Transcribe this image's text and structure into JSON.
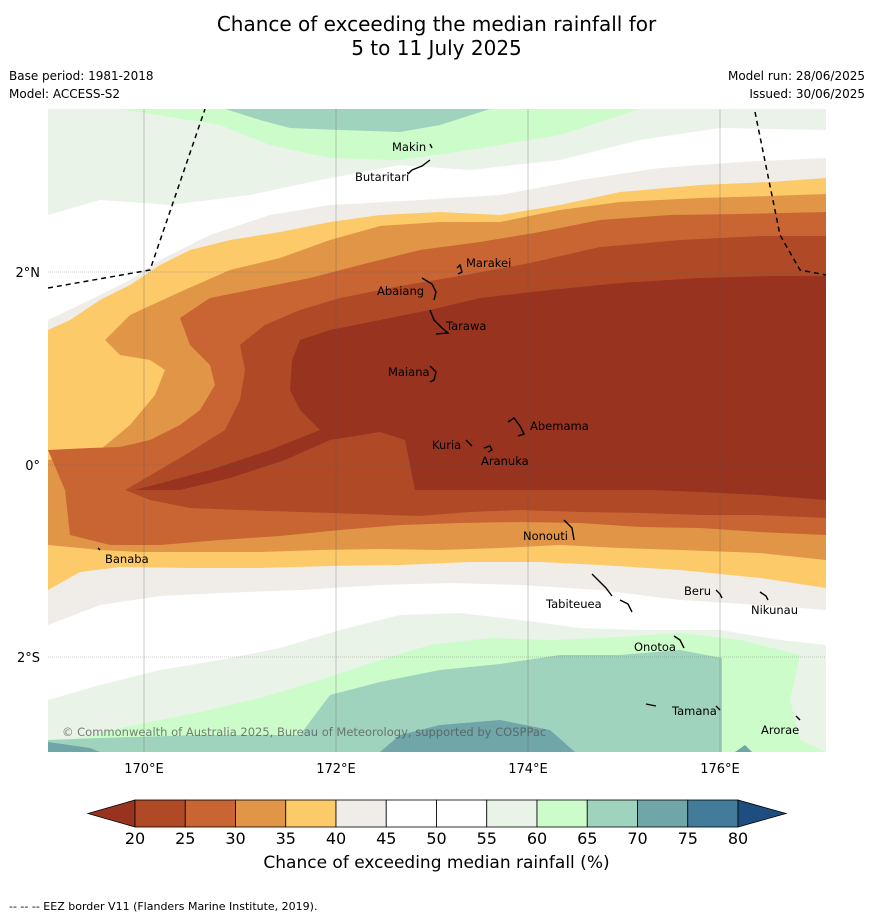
{
  "title": {
    "line1": "Chance of exceeding the median rainfall for",
    "line2": "5 to 11 July 2025"
  },
  "meta": {
    "base_period": "Base period: 1981-2018",
    "model": "Model: ACCESS-S2",
    "model_run": "Model run: 28/06/2025",
    "issued": "Issued: 30/06/2025"
  },
  "map": {
    "lat_labels": [
      "2°N",
      "0°",
      "2°S"
    ],
    "lon_labels": [
      "170°E",
      "172°E",
      "174°E",
      "176°E"
    ],
    "islands": [
      "Makin",
      "Butaritari",
      "Marakei",
      "Abaiang",
      "Tarawa",
      "Maiana",
      "Abemama",
      "Kuria",
      "Aranuka",
      "Nonouti",
      "Banaba",
      "Beru",
      "Tabiteuea",
      "Nikunau",
      "Onotoa",
      "Tamana",
      "Arorae"
    ],
    "copyright": "© Commonwealth of Australia 2025, Bureau of Meteorology, supported by COSPPac"
  },
  "colorbar": {
    "ticks": [
      "20",
      "25",
      "30",
      "35",
      "40",
      "45",
      "50",
      "55",
      "60",
      "65",
      "70",
      "75",
      "80"
    ],
    "colors": [
      "#983320",
      "#b04a26",
      "#c96533",
      "#e09547",
      "#fdca6a",
      "#f0ede8",
      "#ffffff",
      "#ffffff",
      "#eaf3e8",
      "#ccfcca",
      "#9fd3bd",
      "#70a6a8",
      "#437b9b",
      "#1e4d80"
    ],
    "label": "Chance of exceeding median rainfall (%)"
  },
  "footnote": "--  --  -- EEZ border V11 (Flanders Marine Institute, 2019)."
}
